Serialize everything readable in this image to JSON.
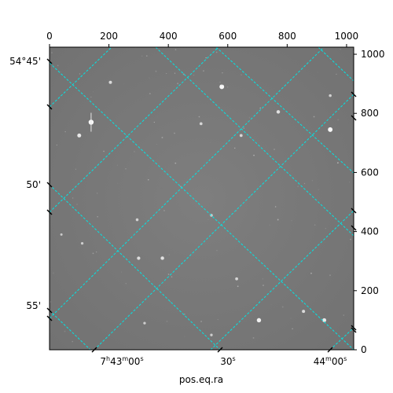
{
  "chart_data": {
    "type": "image",
    "xlabel": "pos.eq.ra",
    "top_axis": {
      "range": [
        0,
        1024
      ],
      "ticks": [
        "0",
        "200",
        "400",
        "600",
        "800",
        "1000"
      ],
      "tick_values": [
        0,
        200,
        400,
        600,
        800,
        1000
      ]
    },
    "right_axis": {
      "range": [
        0,
        1024
      ],
      "ticks": [
        "0",
        "200",
        "400",
        "600",
        "800",
        "1000"
      ],
      "tick_values": [
        0,
        200,
        400,
        600,
        800,
        1000
      ]
    },
    "left_axis_dec": {
      "ticks": [
        "54°45'",
        "50'",
        "55'"
      ]
    },
    "bottom_axis_ra": {
      "ticks": [
        {
          "h": "7",
          "m": "43",
          "s": "00",
          "show_h": true,
          "show_m": true,
          "sec_label": "00"
        },
        {
          "sec_only": true,
          "sec_label": "30"
        },
        {
          "h": "",
          "m": "44",
          "s": "00",
          "show_h": false,
          "show_m": true,
          "sec_label": "00"
        }
      ]
    },
    "grid": true,
    "grid_color": "#00e5e5",
    "image_background": "#7b7b7b",
    "stars": [
      {
        "x": 140,
        "y": 770,
        "brightness": 1.0
      },
      {
        "x": 100,
        "y": 725,
        "brightness": 0.7
      },
      {
        "x": 580,
        "y": 890,
        "brightness": 0.9
      },
      {
        "x": 945,
        "y": 745,
        "brightness": 0.9
      },
      {
        "x": 770,
        "y": 805,
        "brightness": 0.6
      },
      {
        "x": 205,
        "y": 905,
        "brightness": 0.5
      },
      {
        "x": 510,
        "y": 765,
        "brightness": 0.45
      },
      {
        "x": 645,
        "y": 725,
        "brightness": 0.45
      },
      {
        "x": 300,
        "y": 310,
        "brightness": 0.55
      },
      {
        "x": 380,
        "y": 310,
        "brightness": 0.6
      },
      {
        "x": 630,
        "y": 240,
        "brightness": 0.45
      },
      {
        "x": 705,
        "y": 100,
        "brightness": 0.8
      },
      {
        "x": 925,
        "y": 100,
        "brightness": 0.7
      },
      {
        "x": 855,
        "y": 130,
        "brightness": 0.5
      },
      {
        "x": 295,
        "y": 440,
        "brightness": 0.4
      },
      {
        "x": 545,
        "y": 455,
        "brightness": 0.4
      },
      {
        "x": 110,
        "y": 360,
        "brightness": 0.35
      },
      {
        "x": 40,
        "y": 390,
        "brightness": 0.3
      },
      {
        "x": 945,
        "y": 860,
        "brightness": 0.4
      },
      {
        "x": 545,
        "y": 50,
        "brightness": 0.35
      },
      {
        "x": 320,
        "y": 90,
        "brightness": 0.35
      }
    ]
  }
}
